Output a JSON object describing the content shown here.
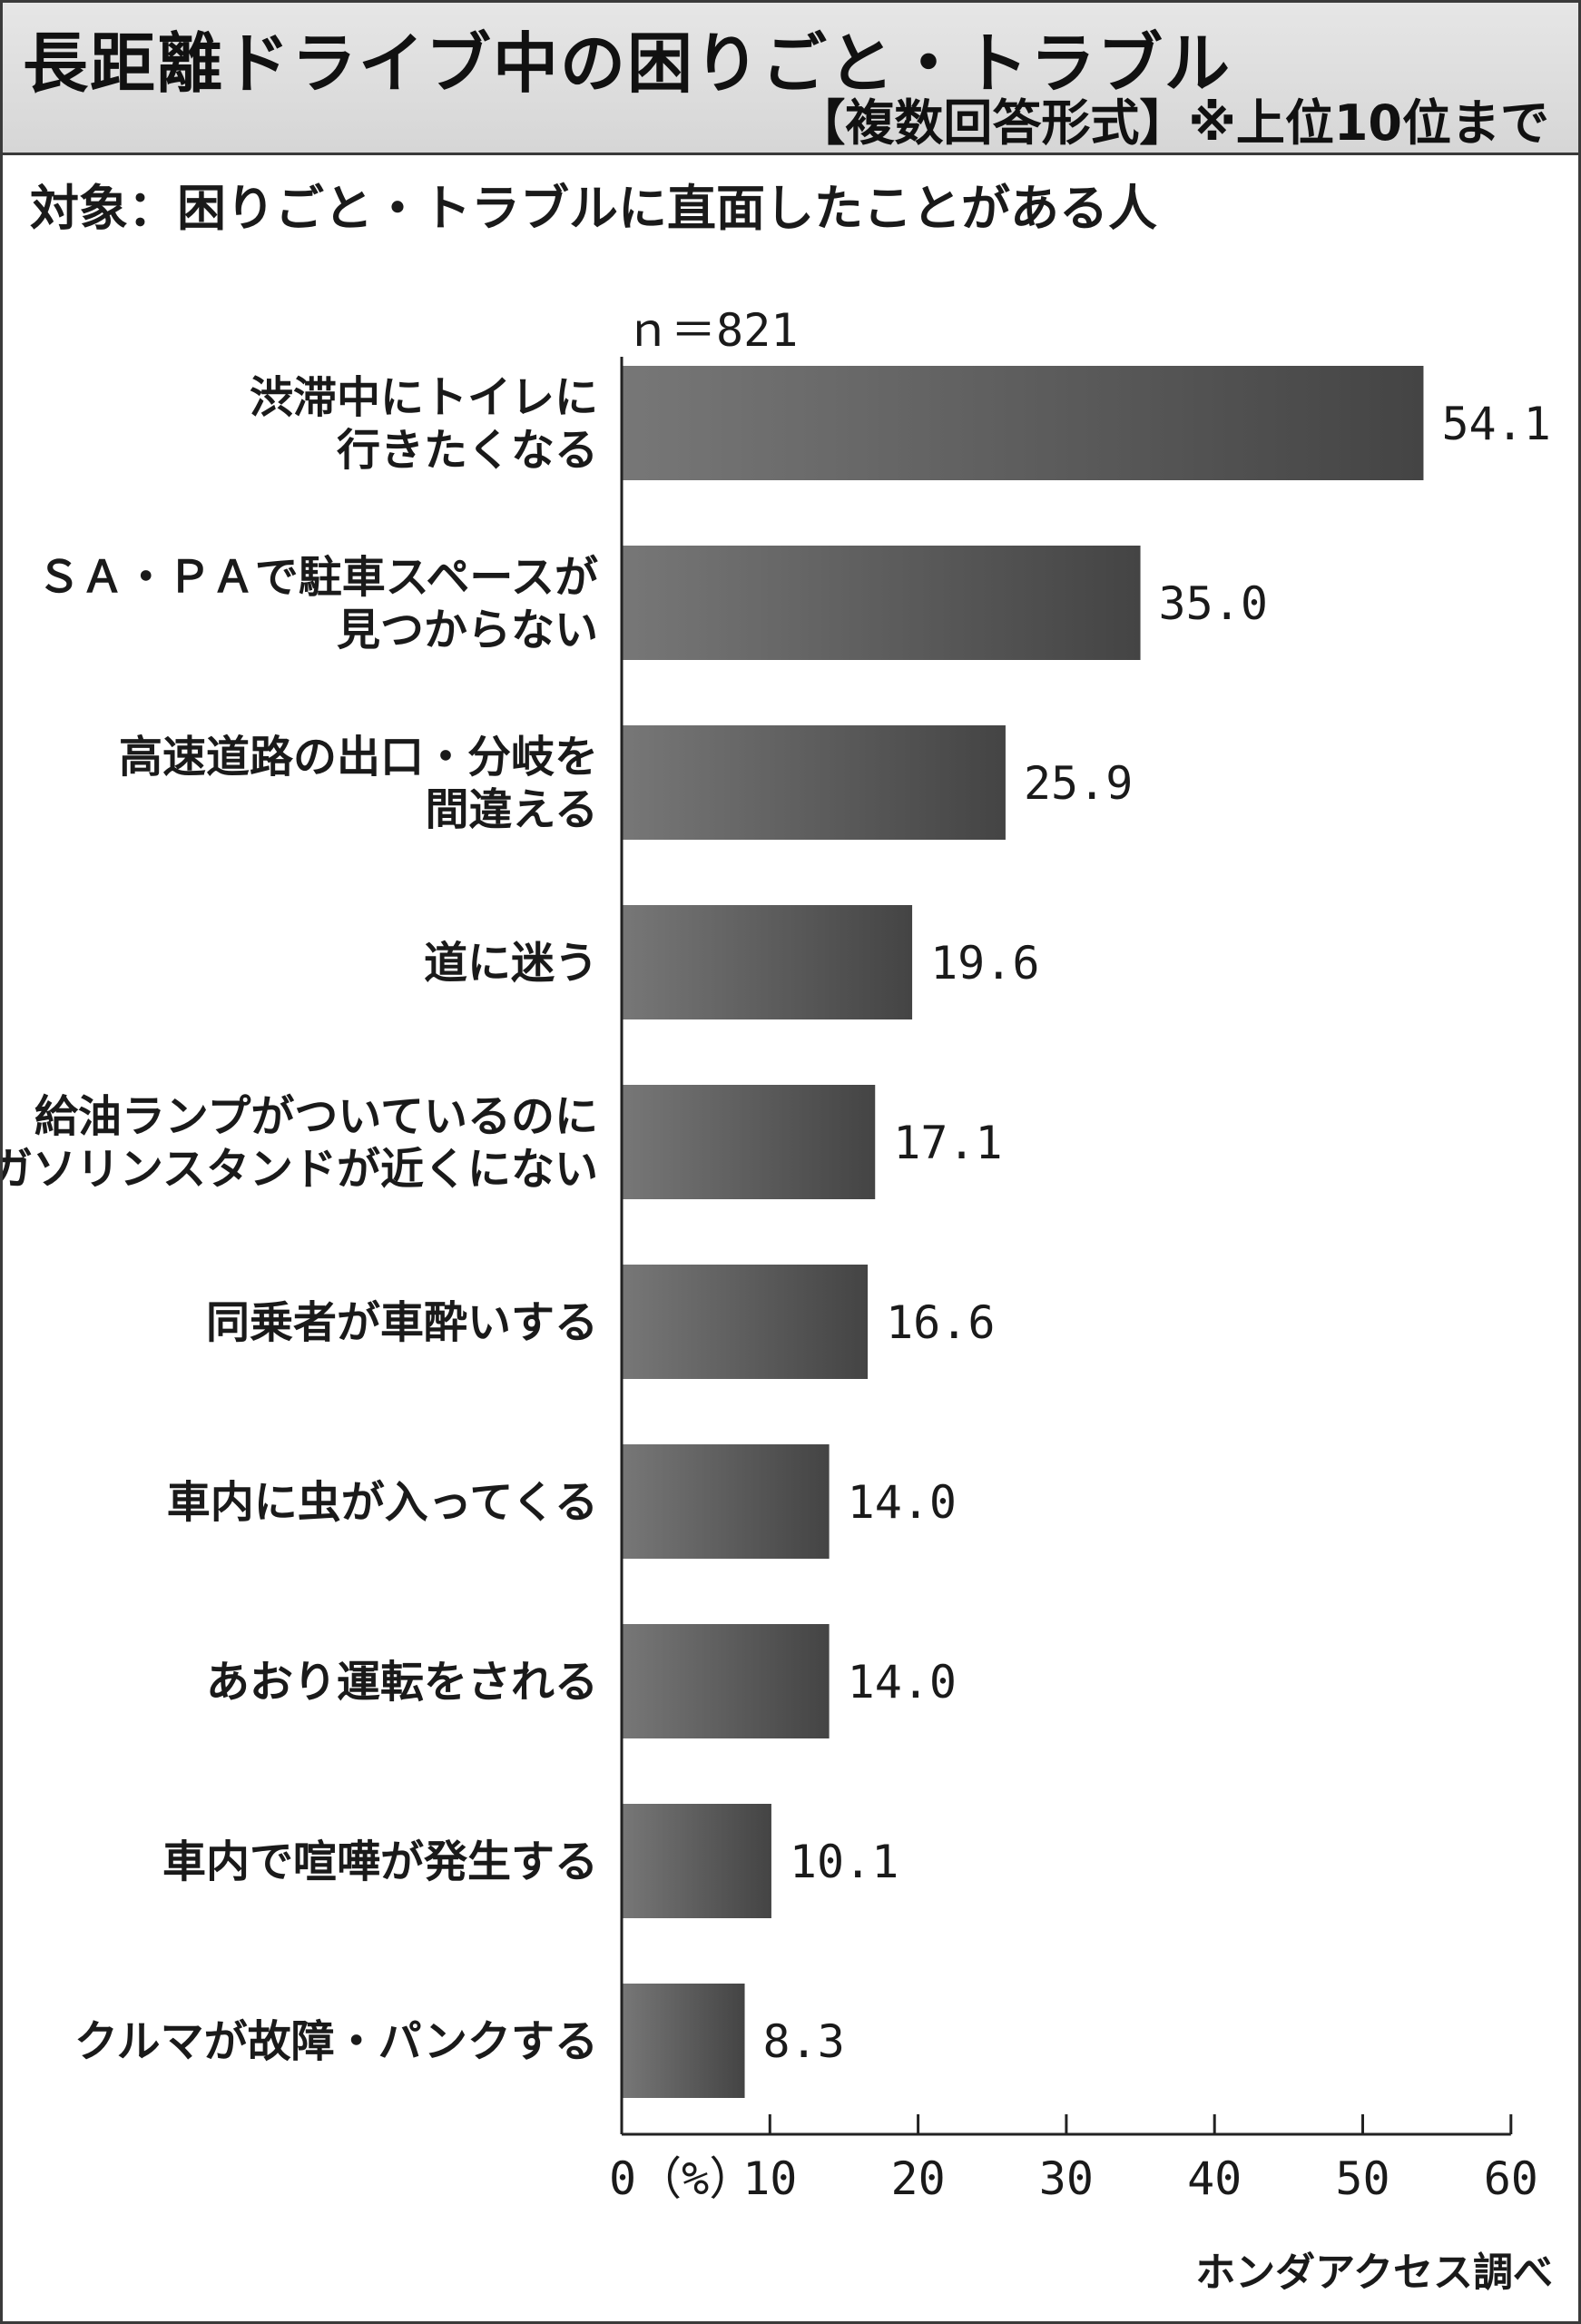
{
  "chart_data": {
    "type": "bar",
    "orientation": "horizontal",
    "title": "長距離ドライブ中の困りごと・トラブル",
    "subtitle": "【複数回答形式】※上位10位まで",
    "target_label": "対象：困りごと・トラブルに直面したことがある人",
    "sample_size": "ｎ＝821",
    "categories": [
      [
        "渋滞中にトイレに",
        "行きたくなる"
      ],
      [
        "ＳＡ・ＰＡで駐車スペースが",
        "見つからない"
      ],
      [
        "高速道路の出口・分岐を",
        "間違える"
      ],
      [
        "道に迷う"
      ],
      [
        "給油ランプがついているのに",
        "ガソリンスタンドが近くにない"
      ],
      [
        "同乗者が車酔いする"
      ],
      [
        "車内に虫が入ってくる"
      ],
      [
        "あおり運転をされる"
      ],
      [
        "車内で喧嘩が発生する"
      ],
      [
        "クルマが故障・パンクする"
      ]
    ],
    "values": [
      54.1,
      35.0,
      25.9,
      19.6,
      17.1,
      16.6,
      14.0,
      14.0,
      10.1,
      8.3
    ],
    "value_labels": [
      "54.1",
      "35.0",
      "25.9",
      "19.6",
      "17.1",
      "16.6",
      "14.0",
      "14.0",
      "10.1",
      "8.3"
    ],
    "x_ticks": [
      "0（%）",
      "10",
      "20",
      "30",
      "40",
      "50",
      "60"
    ],
    "xlim": [
      0,
      60
    ],
    "grid": false,
    "legend": "none",
    "bar_color_start": "#777777",
    "bar_color_end": "#444444",
    "source": "ホンダアクセス調べ"
  }
}
